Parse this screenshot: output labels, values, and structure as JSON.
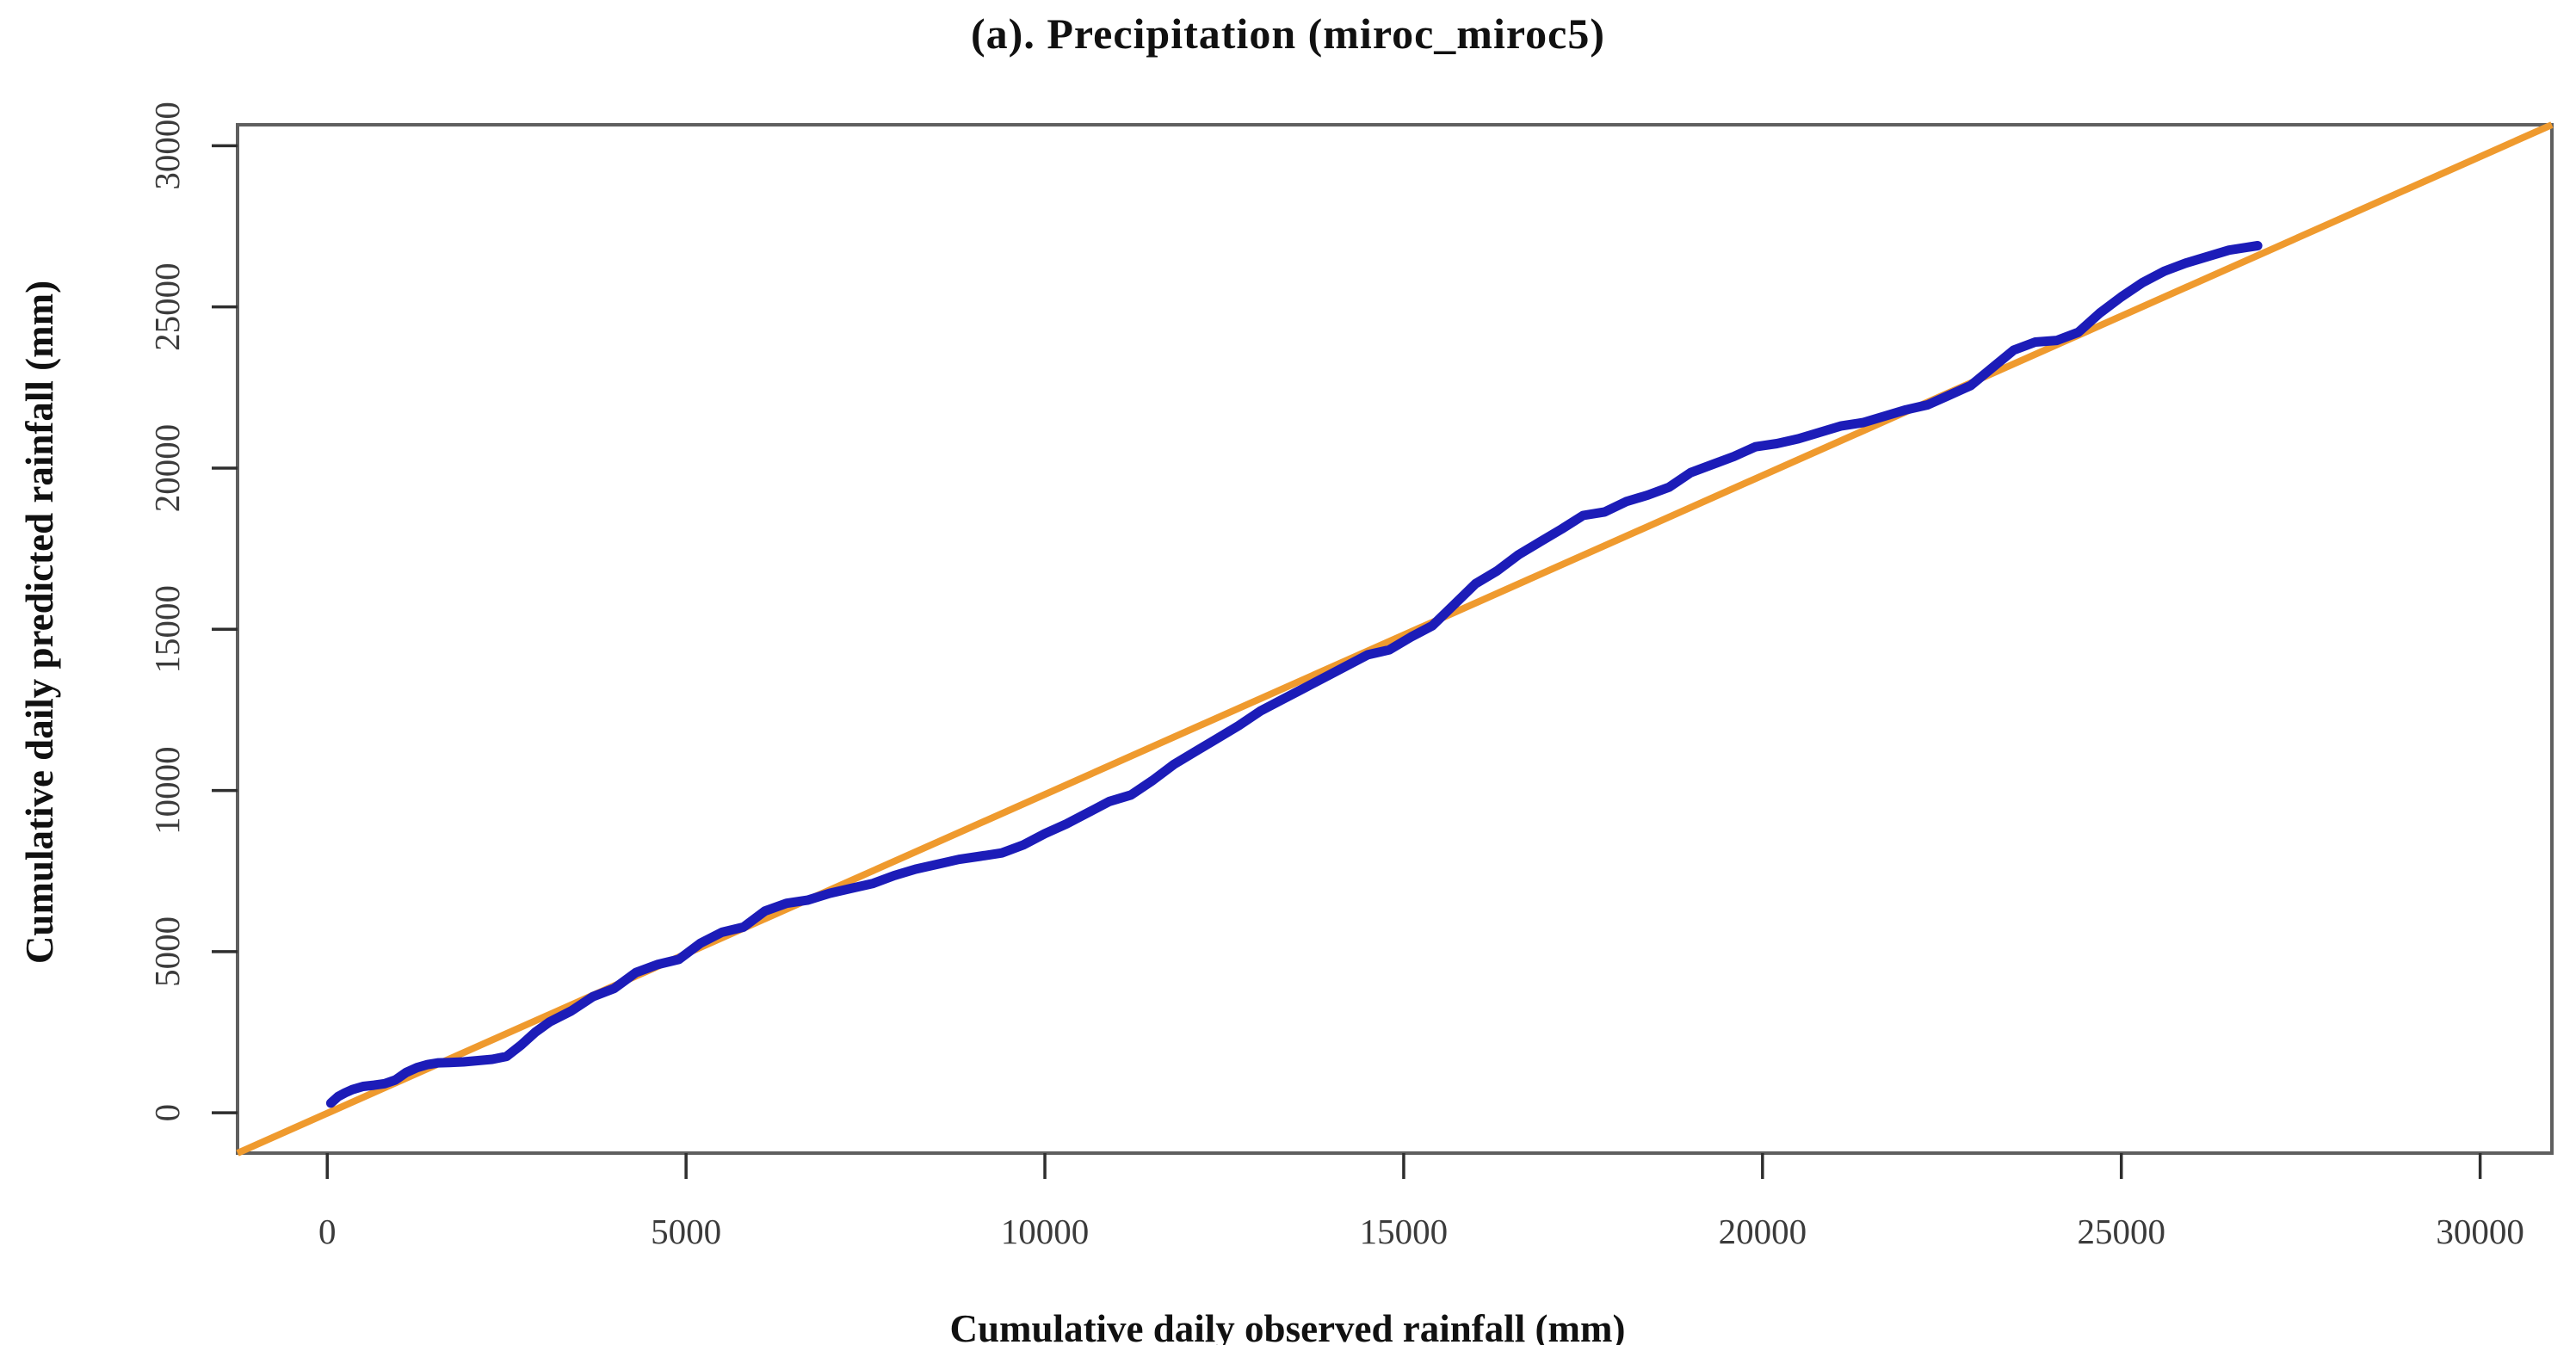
{
  "figure": {
    "title": "(a). Precipitation (miroc_miroc5)",
    "background": "#ffffff"
  },
  "chart_data": {
    "type": "line",
    "title": "(a). Precipitation (miroc_miroc5)",
    "xlabel": "Cumulative daily observed rainfall (mm)",
    "ylabel": "Cumulative daily predicted rainfall (mm)",
    "xlim": [
      -1250,
      31000
    ],
    "ylim": [
      -1250,
      30650
    ],
    "x_ticks": [
      0,
      5000,
      10000,
      15000,
      20000,
      25000,
      30000
    ],
    "y_ticks": [
      0,
      5000,
      10000,
      15000,
      20000,
      25000,
      30000
    ],
    "grid": false,
    "legend": null,
    "box_color": "#5f5f5f",
    "tick_color": "#2e2e2e",
    "tick_text_color": "#3b3b3b",
    "series": [
      {
        "name": "cumulative observed vs predicted rainfall",
        "color": "#1c1cb8",
        "stroke_width": 11,
        "points": [
          [
            50,
            300
          ],
          [
            150,
            500
          ],
          [
            250,
            620
          ],
          [
            350,
            720
          ],
          [
            500,
            820
          ],
          [
            650,
            855
          ],
          [
            800,
            905
          ],
          [
            950,
            1020
          ],
          [
            1100,
            1250
          ],
          [
            1250,
            1400
          ],
          [
            1400,
            1500
          ],
          [
            1550,
            1550
          ],
          [
            1700,
            1560
          ],
          [
            1900,
            1580
          ],
          [
            2100,
            1620
          ],
          [
            2300,
            1660
          ],
          [
            2500,
            1750
          ],
          [
            2700,
            2100
          ],
          [
            2900,
            2500
          ],
          [
            3100,
            2820
          ],
          [
            3400,
            3160
          ],
          [
            3700,
            3600
          ],
          [
            4000,
            3860
          ],
          [
            4300,
            4350
          ],
          [
            4600,
            4600
          ],
          [
            4900,
            4760
          ],
          [
            5200,
            5260
          ],
          [
            5500,
            5600
          ],
          [
            5800,
            5760
          ],
          [
            6100,
            6260
          ],
          [
            6400,
            6500
          ],
          [
            6700,
            6600
          ],
          [
            7000,
            6810
          ],
          [
            7300,
            6960
          ],
          [
            7600,
            7110
          ],
          [
            7900,
            7360
          ],
          [
            8200,
            7560
          ],
          [
            8500,
            7710
          ],
          [
            8800,
            7860
          ],
          [
            9100,
            7960
          ],
          [
            9400,
            8060
          ],
          [
            9700,
            8310
          ],
          [
            10000,
            8660
          ],
          [
            10300,
            8960
          ],
          [
            10600,
            9310
          ],
          [
            10900,
            9660
          ],
          [
            11200,
            9860
          ],
          [
            11500,
            10310
          ],
          [
            11800,
            10810
          ],
          [
            12100,
            11210
          ],
          [
            12400,
            11610
          ],
          [
            12700,
            12010
          ],
          [
            13000,
            12460
          ],
          [
            13300,
            12810
          ],
          [
            13600,
            13160
          ],
          [
            13900,
            13510
          ],
          [
            14200,
            13860
          ],
          [
            14500,
            14210
          ],
          [
            14800,
            14360
          ],
          [
            15100,
            14760
          ],
          [
            15400,
            15110
          ],
          [
            15700,
            15760
          ],
          [
            16000,
            16410
          ],
          [
            16300,
            16810
          ],
          [
            16600,
            17310
          ],
          [
            16900,
            17710
          ],
          [
            17200,
            18110
          ],
          [
            17500,
            18530
          ],
          [
            17800,
            18640
          ],
          [
            18100,
            18960
          ],
          [
            18400,
            19160
          ],
          [
            18700,
            19410
          ],
          [
            19000,
            19860
          ],
          [
            19300,
            20110
          ],
          [
            19600,
            20360
          ],
          [
            19900,
            20660
          ],
          [
            20200,
            20760
          ],
          [
            20500,
            20910
          ],
          [
            20800,
            21110
          ],
          [
            21100,
            21310
          ],
          [
            21400,
            21410
          ],
          [
            21700,
            21610
          ],
          [
            22000,
            21810
          ],
          [
            22300,
            21960
          ],
          [
            22600,
            22260
          ],
          [
            22900,
            22560
          ],
          [
            23200,
            23110
          ],
          [
            23500,
            23660
          ],
          [
            23800,
            23910
          ],
          [
            24100,
            23960
          ],
          [
            24400,
            24210
          ],
          [
            24700,
            24810
          ],
          [
            25000,
            25310
          ],
          [
            25300,
            25760
          ],
          [
            25600,
            26110
          ],
          [
            25900,
            26360
          ],
          [
            26200,
            26560
          ],
          [
            26500,
            26760
          ],
          [
            26750,
            26850
          ],
          [
            26900,
            26900
          ]
        ]
      },
      {
        "name": "1:1 reference line",
        "color": "#ef9a2e",
        "stroke_width": 8,
        "line_type": "identity",
        "intercept": 0,
        "slope": 1
      }
    ]
  }
}
